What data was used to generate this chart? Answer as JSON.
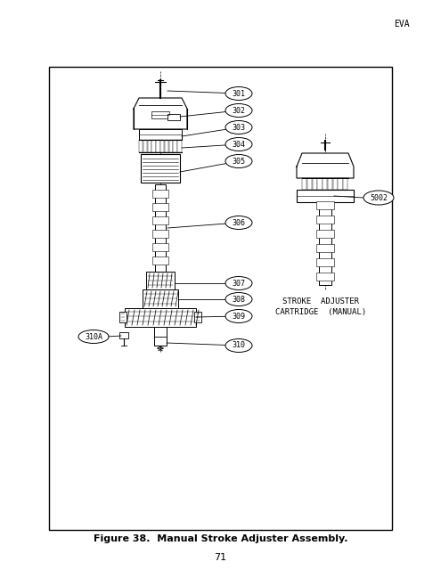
{
  "page_bg": "#ffffff",
  "border_color": "#000000",
  "text_color": "#000000",
  "header_text": "EVA",
  "footer_text": "Figure 38.  Manual Stroke Adjuster Assembly.",
  "page_number": "71",
  "side_label": "5002",
  "side_caption_line1": "STROKE  ADJUSTER",
  "side_caption_line2": "CARTRIDGE  (MANUAL)"
}
